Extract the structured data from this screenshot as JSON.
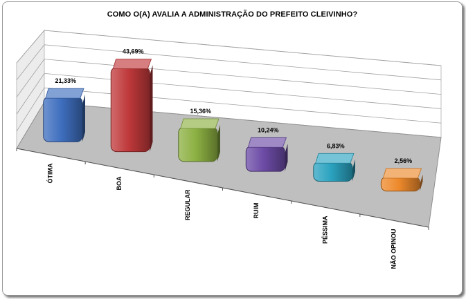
{
  "chart_data": {
    "type": "bar",
    "title": "COMO O(A) AVALIA A ADMINISTRAÇÃO DO PREFEITO CLEIVINHO?",
    "categories": [
      "ÓTIMA",
      "BOA",
      "REGULAR",
      "RUIM",
      "PÉSSIMA",
      "NÃO OPINOU"
    ],
    "values": [
      21.33,
      43.69,
      15.36,
      10.24,
      6.83,
      2.56
    ],
    "data_labels": [
      "21,33%",
      "43,69%",
      "15,36%",
      "10,24%",
      "6,83%",
      "2,56%"
    ],
    "colors": [
      "#3f6fbf",
      "#c0393b",
      "#8cb042",
      "#6c4ba6",
      "#2ba3c0",
      "#ee8a2c"
    ],
    "ylim": [
      0,
      50
    ],
    "grid": true,
    "legend": "none",
    "projection": "3d-perspective"
  }
}
